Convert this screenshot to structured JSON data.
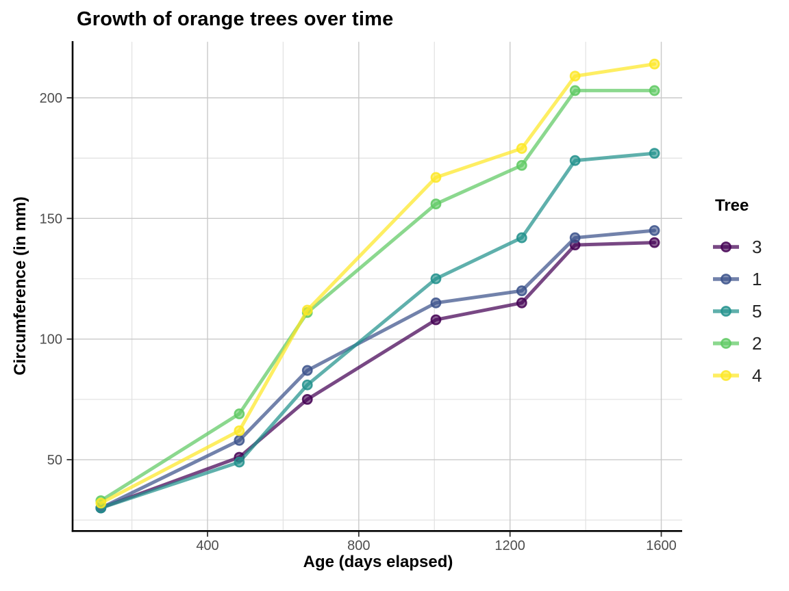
{
  "page": {
    "background": "#ffffff"
  },
  "chart_data": {
    "type": "line",
    "title": "Growth of orange trees over time",
    "xlabel": "Age (days elapsed)",
    "ylabel": "Circumference (in mm)",
    "legend_title": "Tree",
    "legend_position": "right",
    "grid": {
      "major_color": "#c9c9c9",
      "minor_color": "#e3e3e3",
      "background": "#ffffff"
    },
    "axis": {
      "line_color": "#000000",
      "tick_color": "#333333",
      "tick_label_color": "#4d4d4d"
    },
    "xlim": [
      44.8,
      1655.2
    ],
    "ylim": [
      20.8,
      223.2
    ],
    "x_ticks": [
      400,
      800,
      1200,
      1600
    ],
    "y_ticks": [
      50,
      100,
      150,
      200
    ],
    "x_minor_ticks": [
      200,
      600,
      1000,
      1400
    ],
    "y_minor_ticks": [
      25,
      75,
      125,
      175
    ],
    "x": [
      118,
      484,
      664,
      1004,
      1231,
      1372,
      1582
    ],
    "series": [
      {
        "name": "3",
        "color": "#440154",
        "values": [
          30,
          51,
          75,
          108,
          115,
          139,
          140
        ]
      },
      {
        "name": "1",
        "color": "#3B528B",
        "values": [
          30,
          58,
          87,
          115,
          120,
          142,
          145
        ]
      },
      {
        "name": "5",
        "color": "#21918C",
        "values": [
          30,
          49,
          81,
          125,
          142,
          174,
          177
        ]
      },
      {
        "name": "2",
        "color": "#5EC962",
        "values": [
          33,
          69,
          111,
          156,
          172,
          203,
          203
        ]
      },
      {
        "name": "4",
        "color": "#FDE725",
        "values": [
          32,
          62,
          112,
          167,
          179,
          209,
          214
        ]
      }
    ],
    "line_opacity": 0.72,
    "line_width": 5,
    "point_size": 16
  }
}
